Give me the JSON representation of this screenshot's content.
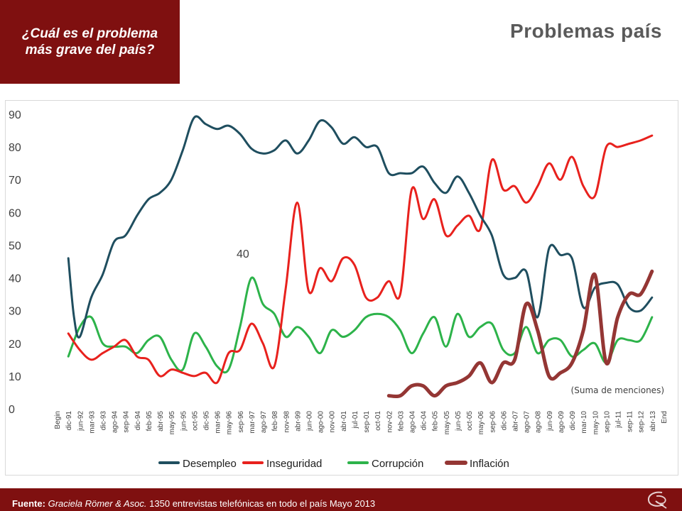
{
  "header": {
    "question_line1": "¿Cuál es el problema",
    "question_line2": "más grave del país?",
    "title": "Problemas país"
  },
  "footer": {
    "label": "Fuente:",
    "source": "Graciela Römer & Asoc.",
    "details": "1350 entrevistas telefónicas en todo el país  Mayo 2013"
  },
  "colors": {
    "brand": "#7f1010",
    "desempleo": "#1f4e5f",
    "inseguridad": "#e8211d",
    "corrupcion": "#2db34a",
    "inflacion": "#943634"
  },
  "chart_data": {
    "type": "line",
    "categories": [
      "Begin",
      "dic-91",
      "jun-92",
      "mar-93",
      "dic-93",
      "ago-94",
      "sep-94",
      "dic-94",
      "feb-95",
      "abr-95",
      "may-95",
      "jun-95",
      "oct-95",
      "dic-95",
      "mar-96",
      "may-96",
      "sep-96",
      "mar-97",
      "ago-97",
      "feb-98",
      "nov-98",
      "abr-99",
      "jun-00",
      "ago-00",
      "nov-00",
      "abr-01",
      "jul-01",
      "sep-01",
      "oct-01",
      "nov-02",
      "feb-03",
      "ago-04",
      "dic-04",
      "feb-05",
      "may-05",
      "jun-05",
      "oct-05",
      "may-06",
      "sep-06",
      "dic-06",
      "abr-07",
      "ago-07",
      "ago-08",
      "jun-09",
      "ago-09",
      "dic-09",
      "mar-10",
      "may-10",
      "sep-10",
      "jul-11",
      "sep-11",
      "sep-12",
      "abr-13",
      "End"
    ],
    "ylim": [
      0,
      90
    ],
    "yticks": [
      0,
      10,
      20,
      30,
      40,
      50,
      60,
      70,
      80,
      90
    ],
    "grid": false,
    "legend": "bottom",
    "annotation": "40",
    "note": "(Suma de menciones)",
    "series": [
      {
        "name": "Desempleo",
        "color": "#1f4e5f",
        "points": [
          [
            1,
            46
          ],
          [
            1.5,
            28
          ],
          [
            2,
            22
          ],
          [
            3,
            34
          ],
          [
            4,
            41
          ],
          [
            5,
            51
          ],
          [
            6,
            53
          ],
          [
            7,
            59
          ],
          [
            8,
            64
          ],
          [
            9,
            66
          ],
          [
            10,
            70
          ],
          [
            11,
            79
          ],
          [
            12,
            89
          ],
          [
            13,
            87
          ],
          [
            14,
            85.5
          ],
          [
            15,
            86.5
          ],
          [
            16,
            84
          ],
          [
            17,
            79.5
          ],
          [
            18,
            78
          ],
          [
            19,
            79
          ],
          [
            20,
            82
          ],
          [
            21,
            78
          ],
          [
            22,
            82
          ],
          [
            23,
            88
          ],
          [
            24,
            86
          ],
          [
            25,
            81
          ],
          [
            26,
            83
          ],
          [
            27,
            80
          ],
          [
            28,
            80
          ],
          [
            29,
            72
          ],
          [
            30,
            72
          ],
          [
            31,
            72
          ],
          [
            32,
            74
          ],
          [
            33,
            69
          ],
          [
            34,
            66
          ],
          [
            35,
            71
          ],
          [
            36,
            66
          ],
          [
            37,
            59
          ],
          [
            38,
            53
          ],
          [
            39,
            41
          ],
          [
            40,
            40
          ],
          [
            41,
            42
          ],
          [
            42,
            28
          ],
          [
            43,
            49
          ],
          [
            44,
            47
          ],
          [
            45,
            46
          ],
          [
            46,
            31
          ],
          [
            47,
            37
          ],
          [
            48,
            38.5
          ],
          [
            49,
            38
          ],
          [
            50,
            31
          ],
          [
            51,
            30
          ],
          [
            52,
            34
          ]
        ]
      },
      {
        "name": "Inseguridad",
        "color": "#e8211d",
        "points": [
          [
            1,
            23
          ],
          [
            2,
            18
          ],
          [
            3,
            15
          ],
          [
            4,
            17
          ],
          [
            5,
            19
          ],
          [
            6,
            21
          ],
          [
            7,
            16
          ],
          [
            8,
            15
          ],
          [
            9,
            10
          ],
          [
            10,
            12
          ],
          [
            11,
            11
          ],
          [
            12,
            10
          ],
          [
            13,
            11
          ],
          [
            14,
            8
          ],
          [
            15,
            17
          ],
          [
            16,
            18
          ],
          [
            17,
            26
          ],
          [
            18,
            20
          ],
          [
            19,
            13
          ],
          [
            20,
            37
          ],
          [
            21,
            63
          ],
          [
            22,
            36
          ],
          [
            23,
            43
          ],
          [
            24,
            39
          ],
          [
            25,
            46
          ],
          [
            26,
            44
          ],
          [
            27,
            34
          ],
          [
            28,
            34
          ],
          [
            29,
            39
          ],
          [
            30,
            35
          ],
          [
            31,
            67
          ],
          [
            32,
            58
          ],
          [
            33,
            64
          ],
          [
            34,
            53
          ],
          [
            35,
            56
          ],
          [
            36,
            59
          ],
          [
            37,
            55
          ],
          [
            38,
            76
          ],
          [
            39,
            67
          ],
          [
            40,
            68
          ],
          [
            41,
            63
          ],
          [
            42,
            68
          ],
          [
            43,
            75
          ],
          [
            44,
            70
          ],
          [
            45,
            77
          ],
          [
            46,
            68
          ],
          [
            47,
            65
          ],
          [
            48,
            80
          ],
          [
            49,
            80
          ],
          [
            50,
            81
          ],
          [
            51,
            82
          ],
          [
            52,
            83.5
          ]
        ]
      },
      {
        "name": "Corrupción",
        "color": "#2db34a",
        "points": [
          [
            1,
            16
          ],
          [
            2,
            25
          ],
          [
            3,
            28
          ],
          [
            4,
            20
          ],
          [
            5,
            19
          ],
          [
            6,
            19
          ],
          [
            7,
            17
          ],
          [
            8,
            21
          ],
          [
            9,
            22
          ],
          [
            10,
            15
          ],
          [
            11,
            12
          ],
          [
            12,
            23
          ],
          [
            13,
            19
          ],
          [
            14,
            13
          ],
          [
            15,
            12
          ],
          [
            16,
            25
          ],
          [
            17,
            40
          ],
          [
            18,
            32
          ],
          [
            19,
            29
          ],
          [
            20,
            22
          ],
          [
            21,
            25
          ],
          [
            22,
            22
          ],
          [
            23,
            17
          ],
          [
            24,
            24
          ],
          [
            25,
            22
          ],
          [
            26,
            24
          ],
          [
            27,
            28
          ],
          [
            28,
            29
          ],
          [
            29,
            28
          ],
          [
            30,
            24
          ],
          [
            31,
            17
          ],
          [
            32,
            23
          ],
          [
            33,
            28
          ],
          [
            34,
            19
          ],
          [
            35,
            29
          ],
          [
            36,
            22
          ],
          [
            37,
            25
          ],
          [
            38,
            26
          ],
          [
            39,
            18
          ],
          [
            40,
            17
          ],
          [
            41,
            25
          ],
          [
            42,
            17
          ],
          [
            43,
            21
          ],
          [
            44,
            21
          ],
          [
            45,
            16
          ],
          [
            46,
            18
          ],
          [
            47,
            20
          ],
          [
            48,
            14
          ],
          [
            49,
            21
          ],
          [
            50,
            21
          ],
          [
            51,
            21
          ],
          [
            52,
            28
          ]
        ]
      },
      {
        "name": "Inflación",
        "color": "#943634",
        "points": [
          [
            29,
            4
          ],
          [
            30,
            4
          ],
          [
            31,
            7
          ],
          [
            32,
            7
          ],
          [
            33,
            4
          ],
          [
            34,
            7
          ],
          [
            35,
            8
          ],
          [
            36,
            10
          ],
          [
            37,
            14
          ],
          [
            38,
            8
          ],
          [
            39,
            14
          ],
          [
            40,
            15
          ],
          [
            41,
            32
          ],
          [
            42,
            24
          ],
          [
            43,
            10
          ],
          [
            44,
            11
          ],
          [
            45,
            14
          ],
          [
            46,
            24
          ],
          [
            47,
            41
          ],
          [
            48,
            14
          ],
          [
            49,
            28
          ],
          [
            50,
            35
          ],
          [
            51,
            35
          ],
          [
            52,
            42
          ]
        ]
      }
    ]
  }
}
